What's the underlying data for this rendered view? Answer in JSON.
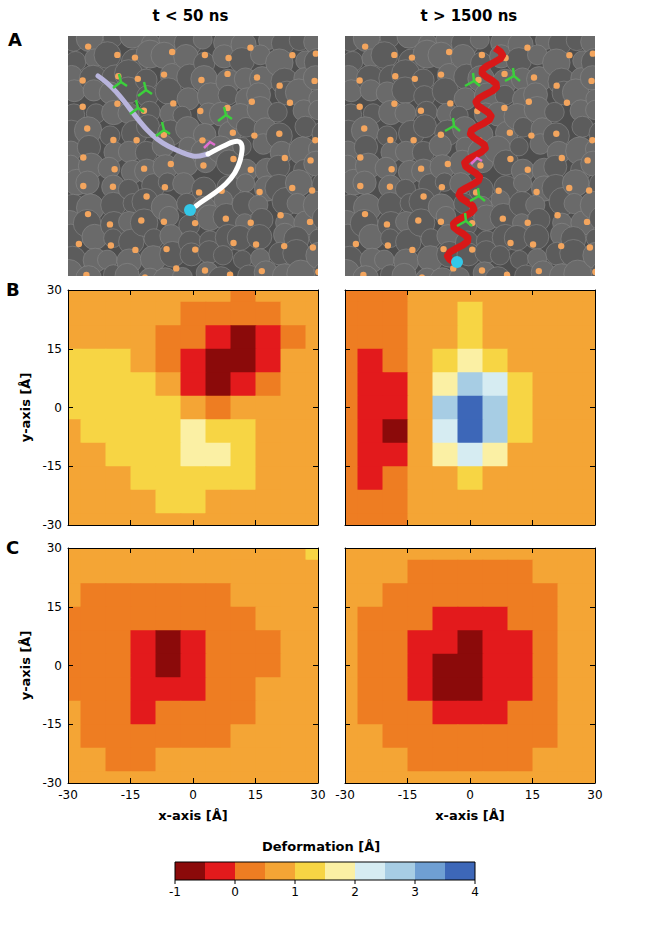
{
  "column_titles": [
    "t < 50 ns",
    "t > 1500 ns"
  ],
  "image_panel": {
    "label": "A"
  },
  "colorbar": {
    "title": "Deformation [Å]",
    "range": [
      -1,
      4
    ],
    "ticks": [
      -1,
      0,
      1,
      2,
      3,
      4
    ],
    "bounds": [
      -1,
      -0.5,
      0,
      0.5,
      1,
      1.5,
      2,
      2.5,
      3,
      3.5,
      4
    ],
    "colors": [
      "#8b0a0a",
      "#e31a1c",
      "#ee7d22",
      "#f4a535",
      "#f7d544",
      "#fbf0a4",
      "#d6ecf2",
      "#a7cde4",
      "#6f9fd3",
      "#3d67b8"
    ]
  },
  "chart_data": [
    {
      "type": "heatmap",
      "panel": "B",
      "ylabel": "y-axis [Å]",
      "tick_labels": "y",
      "xlim": [
        -30,
        30
      ],
      "ylim": [
        -30,
        30
      ],
      "xticks": [
        -30,
        -15,
        0,
        15,
        30
      ],
      "yticks": [
        -30,
        -15,
        0,
        15,
        30
      ],
      "x": [
        -30,
        -24,
        -18,
        -12,
        -6,
        0,
        6,
        12,
        18,
        24,
        30
      ],
      "y": [
        30,
        24,
        18,
        12,
        6,
        0,
        -6,
        -12,
        -18,
        -24,
        -30
      ],
      "z": [
        [
          0.8,
          0.8,
          0.7,
          0.6,
          0.6,
          0.5,
          0.6,
          0.4,
          0.5,
          0.6,
          0.7
        ],
        [
          0.8,
          0.9,
          0.8,
          0.7,
          0.5,
          0.4,
          0.3,
          0.0,
          0.2,
          0.5,
          0.6
        ],
        [
          0.9,
          0.9,
          0.9,
          0.7,
          0.4,
          0.1,
          -0.3,
          -0.8,
          -0.2,
          0.4,
          0.6
        ],
        [
          1.0,
          1.0,
          1.0,
          0.8,
          0.4,
          -0.3,
          -0.9,
          -0.7,
          -0.1,
          0.5,
          0.6
        ],
        [
          1.0,
          1.1,
          1.2,
          1.0,
          0.6,
          -0.2,
          -0.6,
          -0.2,
          0.3,
          0.6,
          0.6
        ],
        [
          1.0,
          1.1,
          1.2,
          1.2,
          1.0,
          0.6,
          0.3,
          0.6,
          0.8,
          0.7,
          0.6
        ],
        [
          0.9,
          1.0,
          1.1,
          1.2,
          1.3,
          1.5,
          1.4,
          1.2,
          0.9,
          0.7,
          0.6
        ],
        [
          0.8,
          0.9,
          1.0,
          1.1,
          1.4,
          1.8,
          1.7,
          1.3,
          0.9,
          0.6,
          0.6
        ],
        [
          0.7,
          0.8,
          0.9,
          1.0,
          1.2,
          1.3,
          1.2,
          1.0,
          0.8,
          0.6,
          0.5
        ],
        [
          0.6,
          0.7,
          0.8,
          0.9,
          1.0,
          1.0,
          0.9,
          0.8,
          0.7,
          0.6,
          0.5
        ],
        [
          0.6,
          0.6,
          0.7,
          0.8,
          0.8,
          0.8,
          0.7,
          0.7,
          0.6,
          0.6,
          0.5
        ]
      ]
    },
    {
      "type": "heatmap",
      "panel": "B",
      "tick_labels": false,
      "xlim": [
        -30,
        30
      ],
      "ylim": [
        -30,
        30
      ],
      "xticks": [
        -30,
        -15,
        0,
        15,
        30
      ],
      "yticks": [
        -30,
        -15,
        0,
        15,
        30
      ],
      "x": [
        -30,
        -24,
        -18,
        -12,
        -6,
        0,
        6,
        12,
        18,
        24,
        30
      ],
      "y": [
        30,
        24,
        18,
        12,
        6,
        0,
        -6,
        -12,
        -18,
        -24,
        -30
      ],
      "z": [
        [
          0.4,
          0.2,
          0.4,
          0.6,
          0.7,
          0.9,
          0.7,
          0.6,
          0.6,
          0.6,
          0.6
        ],
        [
          0.4,
          0.1,
          0.3,
          0.6,
          0.8,
          1.0,
          0.8,
          0.6,
          0.6,
          0.6,
          0.6
        ],
        [
          0.3,
          0.0,
          0.2,
          0.6,
          0.9,
          1.1,
          0.9,
          0.7,
          0.6,
          0.6,
          0.6
        ],
        [
          0.3,
          -0.2,
          0.0,
          0.5,
          1.2,
          1.6,
          1.3,
          0.8,
          0.6,
          0.6,
          0.6
        ],
        [
          0.3,
          -0.3,
          -0.2,
          0.6,
          1.9,
          2.6,
          2.0,
          1.0,
          0.6,
          0.6,
          0.6
        ],
        [
          0.3,
          -0.4,
          -0.5,
          0.7,
          2.6,
          3.7,
          2.8,
          1.2,
          0.6,
          0.6,
          0.6
        ],
        [
          0.3,
          -0.5,
          -0.6,
          0.6,
          2.4,
          3.6,
          2.6,
          1.1,
          0.6,
          0.6,
          0.6
        ],
        [
          0.3,
          -0.3,
          -0.3,
          0.5,
          1.5,
          2.0,
          1.6,
          0.8,
          0.6,
          0.6,
          0.6
        ],
        [
          0.3,
          -0.1,
          0.1,
          0.5,
          0.8,
          1.0,
          0.8,
          0.6,
          0.6,
          0.6,
          0.6
        ],
        [
          0.4,
          0.2,
          0.3,
          0.5,
          0.6,
          0.6,
          0.6,
          0.6,
          0.6,
          0.6,
          0.6
        ],
        [
          0.4,
          0.3,
          0.4,
          0.5,
          0.6,
          0.6,
          0.6,
          0.6,
          0.6,
          0.6,
          0.6
        ]
      ]
    },
    {
      "type": "heatmap",
      "panel": "C",
      "xlabel": "x-axis [Å]",
      "ylabel": "y-axis [Å]",
      "tick_labels": true,
      "xlim": [
        -30,
        30
      ],
      "ylim": [
        -30,
        30
      ],
      "xticks": [
        -30,
        -15,
        0,
        15,
        30
      ],
      "yticks": [
        -30,
        -15,
        0,
        15,
        30
      ],
      "x": [
        -30,
        -24,
        -18,
        -12,
        -6,
        0,
        6,
        12,
        18,
        24,
        30
      ],
      "y": [
        30,
        24,
        18,
        12,
        6,
        0,
        -6,
        -12,
        -18,
        -24,
        -30
      ],
      "z": [
        [
          0.6,
          0.6,
          0.7,
          0.8,
          0.7,
          0.6,
          0.6,
          0.7,
          0.8,
          0.9,
          1.0
        ],
        [
          0.5,
          0.5,
          0.6,
          0.6,
          0.5,
          0.5,
          0.5,
          0.6,
          0.7,
          0.8,
          0.9
        ],
        [
          0.5,
          0.4,
          0.4,
          0.3,
          0.3,
          0.3,
          0.4,
          0.5,
          0.6,
          0.7,
          0.8
        ],
        [
          0.4,
          0.3,
          0.2,
          0.1,
          0.0,
          0.1,
          0.3,
          0.4,
          0.5,
          0.6,
          0.7
        ],
        [
          0.4,
          0.2,
          0.0,
          -0.2,
          -0.6,
          -0.3,
          0.1,
          0.3,
          0.4,
          0.6,
          0.7
        ],
        [
          0.4,
          0.2,
          0.0,
          -0.3,
          -0.7,
          -0.4,
          0.0,
          0.2,
          0.4,
          0.6,
          0.7
        ],
        [
          0.4,
          0.3,
          0.1,
          -0.1,
          -0.2,
          -0.1,
          0.1,
          0.3,
          0.5,
          0.6,
          0.7
        ],
        [
          0.5,
          0.3,
          0.2,
          -0.2,
          0.1,
          0.2,
          0.3,
          0.4,
          0.5,
          0.7,
          0.8
        ],
        [
          0.5,
          0.4,
          0.3,
          0.2,
          0.3,
          0.4,
          0.4,
          0.5,
          0.6,
          0.7,
          0.8
        ],
        [
          0.6,
          0.5,
          0.4,
          0.4,
          0.5,
          0.5,
          0.5,
          0.6,
          0.7,
          0.8,
          0.9
        ],
        [
          0.6,
          0.6,
          0.5,
          0.5,
          0.6,
          0.6,
          0.6,
          0.7,
          0.8,
          0.9,
          0.9
        ]
      ]
    },
    {
      "type": "heatmap",
      "panel": "C",
      "xlabel": "x-axis [Å]",
      "tick_labels": "x",
      "xlim": [
        -30,
        30
      ],
      "ylim": [
        -30,
        30
      ],
      "xticks": [
        -30,
        -15,
        0,
        15,
        30
      ],
      "yticks": [
        -30,
        -15,
        0,
        15,
        30
      ],
      "x": [
        -30,
        -24,
        -18,
        -12,
        -6,
        0,
        6,
        12,
        18,
        24,
        30
      ],
      "y": [
        30,
        24,
        18,
        12,
        6,
        0,
        -6,
        -12,
        -18,
        -24,
        -30
      ],
      "z": [
        [
          0.9,
          0.8,
          0.7,
          0.6,
          0.6,
          0.6,
          0.6,
          0.6,
          0.7,
          0.8,
          0.9
        ],
        [
          0.8,
          0.7,
          0.5,
          0.4,
          0.4,
          0.4,
          0.4,
          0.4,
          0.5,
          0.7,
          0.8
        ],
        [
          0.7,
          0.5,
          0.4,
          0.3,
          0.1,
          0.1,
          0.2,
          0.3,
          0.4,
          0.6,
          0.7
        ],
        [
          0.6,
          0.4,
          0.3,
          0.0,
          -0.2,
          -0.3,
          -0.2,
          0.0,
          0.3,
          0.5,
          0.6
        ],
        [
          0.6,
          0.4,
          0.2,
          -0.2,
          -0.4,
          -0.6,
          -0.4,
          -0.1,
          0.2,
          0.5,
          0.6
        ],
        [
          0.6,
          0.4,
          0.2,
          -0.2,
          -0.6,
          -0.8,
          -0.4,
          -0.1,
          0.2,
          0.5,
          0.6
        ],
        [
          0.6,
          0.4,
          0.2,
          -0.2,
          -0.6,
          -0.6,
          -0.3,
          -0.1,
          0.2,
          0.5,
          0.6
        ],
        [
          0.6,
          0.4,
          0.3,
          0.0,
          -0.2,
          -0.2,
          -0.1,
          0.1,
          0.3,
          0.5,
          0.6
        ],
        [
          0.7,
          0.5,
          0.4,
          0.3,
          0.1,
          0.1,
          0.2,
          0.3,
          0.4,
          0.6,
          0.7
        ],
        [
          0.8,
          0.7,
          0.5,
          0.4,
          0.4,
          0.4,
          0.4,
          0.4,
          0.5,
          0.7,
          0.8
        ],
        [
          0.9,
          0.8,
          0.7,
          0.6,
          0.6,
          0.6,
          0.6,
          0.6,
          0.7,
          0.8,
          0.9
        ]
      ]
    }
  ]
}
